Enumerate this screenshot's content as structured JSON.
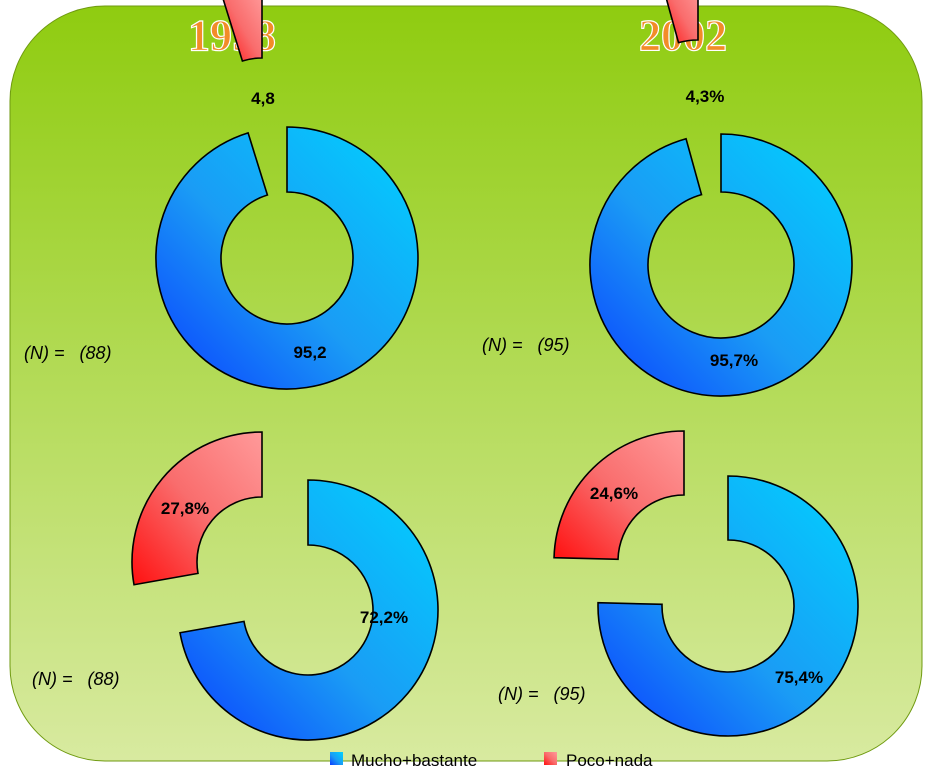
{
  "colors": {
    "mucho_bastante": "#1fb2f5",
    "poco_nada": "#f56a6a",
    "background_top": "#8fcc10",
    "background_bottom": "#d8eaa0",
    "year_label": "#f28c28"
  },
  "headings": [
    "1998",
    "2002"
  ],
  "legend": [
    "Mucho+bastante",
    "Poco+nada"
  ],
  "chart_data": [
    {
      "type": "pie",
      "style": "donut",
      "title": "1998",
      "n_label": "(N) =   (88)",
      "categories": [
        "Mucho+bastante",
        "Poco+nada"
      ],
      "values": [
        95.2,
        4.8
      ],
      "value_labels": [
        "95,2",
        "4,8"
      ]
    },
    {
      "type": "pie",
      "style": "donut",
      "title": "2002",
      "n_label": "(N) =   (95)",
      "categories": [
        "Mucho+bastante",
        "Poco+nada"
      ],
      "values": [
        95.7,
        4.3
      ],
      "value_labels": [
        "95,7%",
        "4,3%"
      ]
    },
    {
      "type": "pie",
      "style": "donut",
      "title": "",
      "n_label": "(N) =   (88)",
      "categories": [
        "Mucho+bastante",
        "Poco+nada"
      ],
      "values": [
        72.2,
        27.8
      ],
      "value_labels": [
        "72,2%",
        "27,8%"
      ]
    },
    {
      "type": "pie",
      "style": "donut",
      "title": "",
      "n_label": "(N) =   (95)",
      "categories": [
        "Mucho+bastante",
        "Poco+nada"
      ],
      "values": [
        75.4,
        24.6
      ],
      "value_labels": [
        "75,4%",
        "24,6%"
      ]
    }
  ]
}
